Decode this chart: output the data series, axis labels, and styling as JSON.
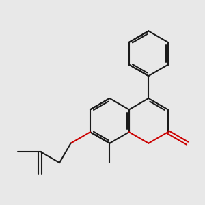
{
  "bg_color": "#e8e8e8",
  "bond_color": "#1a1a1a",
  "heteroatom_color": "#cc0000",
  "bond_width": 1.5,
  "lw": 1.5,
  "fig_size": [
    3.0,
    3.0
  ],
  "dpi": 100
}
